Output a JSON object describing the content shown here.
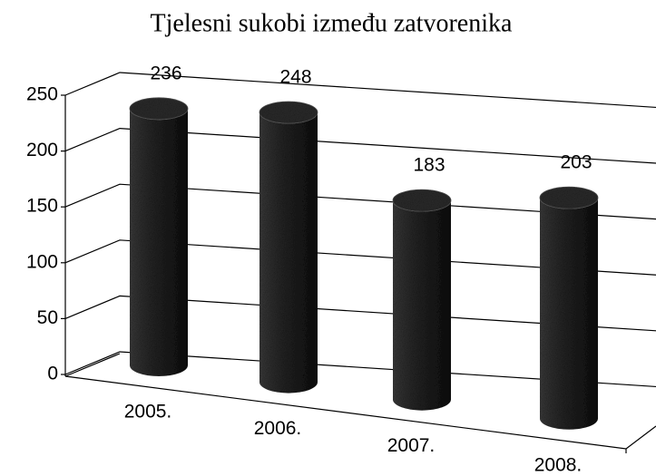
{
  "chart_data": {
    "type": "bar",
    "title": "Tjelesni sukobi između zatvorenika",
    "categories": [
      "2005.",
      "2006.",
      "2007.",
      "2008."
    ],
    "values": [
      236,
      248,
      183,
      203
    ],
    "color": "#1e1e1e",
    "ylim": [
      0,
      250
    ],
    "yticks": [
      0,
      50,
      100,
      150,
      200,
      250
    ],
    "grid": true
  }
}
